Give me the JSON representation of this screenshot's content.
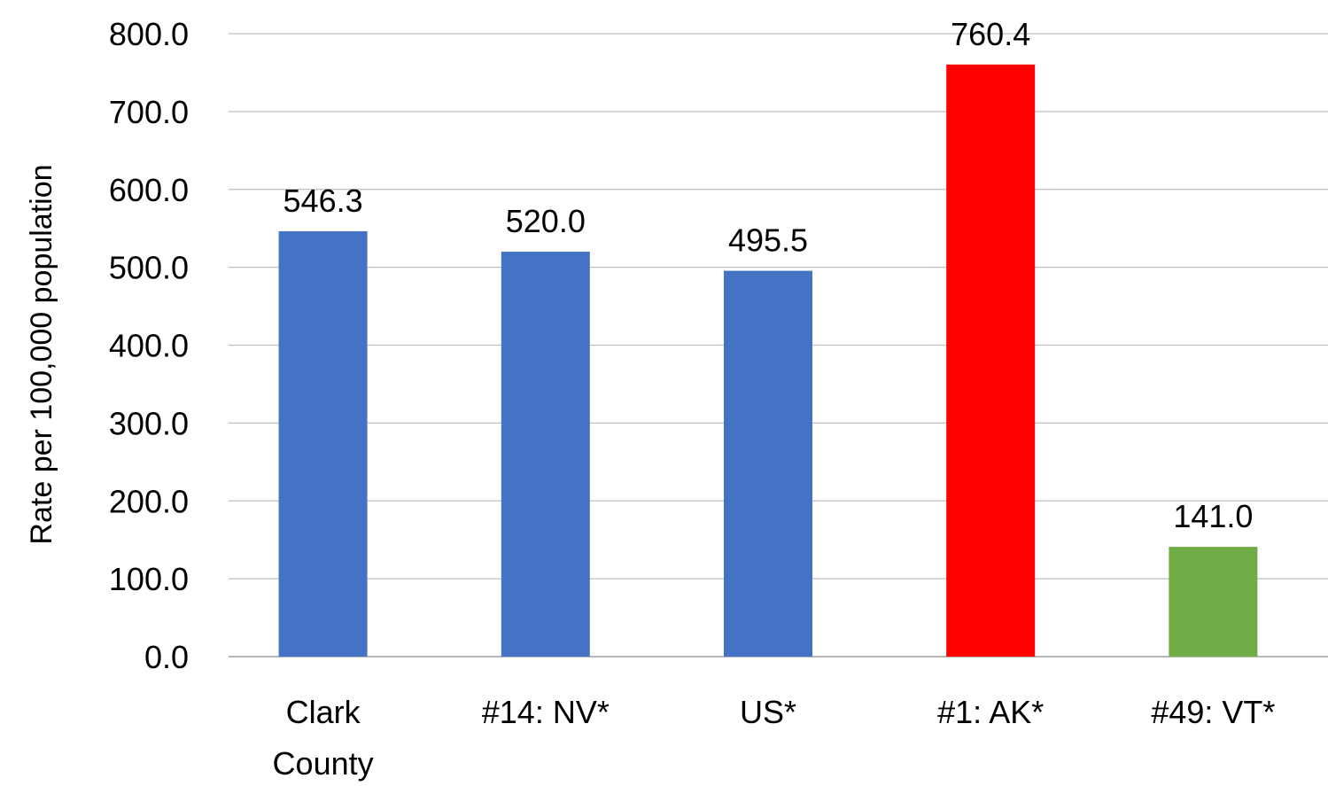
{
  "chart_data": {
    "type": "bar",
    "title": "",
    "xlabel": "",
    "ylabel": "Rate per 100,000 population",
    "ylim": [
      0,
      800
    ],
    "ytick_step": 100,
    "ytick_labels": [
      "0.0",
      "100.0",
      "200.0",
      "300.0",
      "400.0",
      "500.0",
      "600.0",
      "700.0",
      "800.0"
    ],
    "categories": [
      [
        "Clark",
        "County"
      ],
      [
        "#14: NV*"
      ],
      [
        "US*"
      ],
      [
        "#1: AK*"
      ],
      [
        "#49: VT*"
      ]
    ],
    "values": [
      546.3,
      520.0,
      495.5,
      760.4,
      141.0
    ],
    "value_labels": [
      "546.3",
      "520.0",
      "495.5",
      "760.4",
      "141.0"
    ],
    "bar_colors": [
      "#4472C4",
      "#4472C4",
      "#4472C4",
      "#FF0000",
      "#70AD47"
    ],
    "grid": true,
    "legend": "none"
  }
}
